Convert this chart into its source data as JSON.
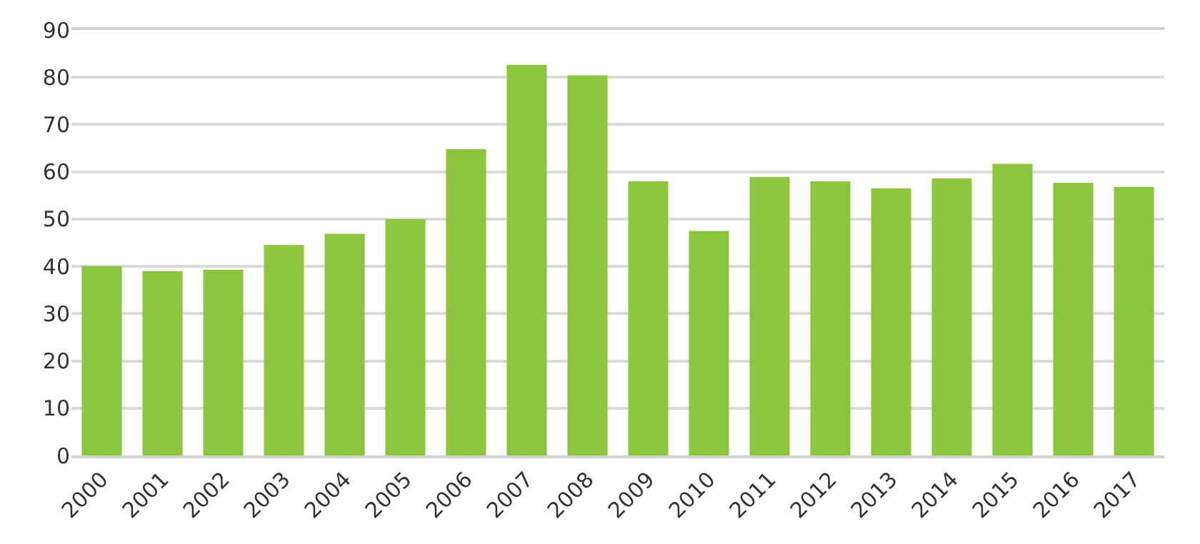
{
  "chart_data": {
    "type": "bar",
    "categories": [
      "2000",
      "2001",
      "2002",
      "2003",
      "2004",
      "2005",
      "2006",
      "2007",
      "2008",
      "2009",
      "2010",
      "2011",
      "2012",
      "2013",
      "2014",
      "2015",
      "2016",
      "2017"
    ],
    "values": [
      40,
      39,
      39.3,
      44.5,
      46.9,
      50,
      64.8,
      82.6,
      80.4,
      58,
      47.5,
      58.9,
      58,
      56.5,
      58.6,
      61.7,
      57.7,
      56.8
    ],
    "color": "#8cc63e",
    "ylim": [
      0,
      90
    ],
    "yticks": [
      0,
      10,
      20,
      30,
      40,
      50,
      60,
      70,
      80,
      90
    ],
    "grid": "y"
  }
}
